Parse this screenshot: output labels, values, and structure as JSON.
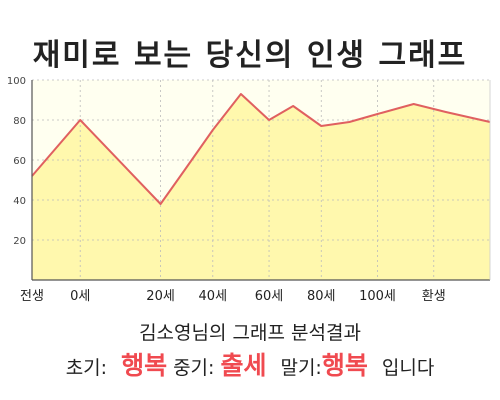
{
  "colors": {
    "plot_bg": "#fffff0",
    "area_fill": "#fff8ad",
    "line": "#e06060",
    "highlight": "#f04a50"
  },
  "result": {
    "title": "김소영님의 그래프 분석결과",
    "early_label": "초기:",
    "early_value": "행복",
    "mid_label": "중기:",
    "mid_value": "출세",
    "late_label": "말기:",
    "late_value": "행복",
    "ending": "입니다"
  },
  "chart_data": {
    "type": "area",
    "title": "재미로 보는 당신의 인생 그래프",
    "xlabel": "",
    "ylabel": "",
    "x": [
      -12,
      0,
      20,
      26,
      33,
      40,
      47,
      53,
      60,
      67,
      74,
      83,
      91,
      102
    ],
    "values": [
      52,
      80,
      38,
      55,
      75,
      93,
      80,
      87,
      77,
      79,
      83,
      88,
      84,
      79
    ],
    "xlim": [
      -12,
      102
    ],
    "ylim": [
      0,
      100
    ],
    "x_ticks": [
      {
        "x": -12,
        "label": "전생"
      },
      {
        "x": 0,
        "label": "0세"
      },
      {
        "x": 20,
        "label": "20세"
      },
      {
        "x": 33,
        "label": "40세"
      },
      {
        "x": 47,
        "label": "60세"
      },
      {
        "x": 60,
        "label": "80세"
      },
      {
        "x": 74,
        "label": "100세"
      },
      {
        "x": 88,
        "label": "환생"
      }
    ],
    "y_ticks": [
      20,
      40,
      60,
      80,
      100
    ],
    "grid": true
  }
}
